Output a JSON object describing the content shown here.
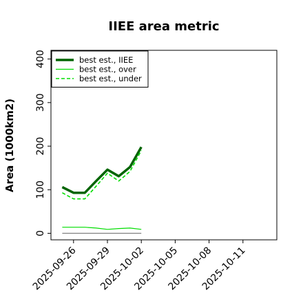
{
  "chart_data": {
    "type": "line",
    "title": "IIEE area metric",
    "xlabel": "",
    "ylabel": "Area (1000km2)",
    "xlim": [
      "2025-09-24",
      "2025-10-14"
    ],
    "ylim": [
      -15,
      420
    ],
    "x_ticks": [
      "2025-09-26",
      "2025-09-29",
      "2025-10-02",
      "2025-10-05",
      "2025-10-08",
      "2025-10-11"
    ],
    "y_ticks": [
      0,
      100,
      200,
      300,
      400
    ],
    "legend": {
      "placement": "top-left",
      "frame": true
    },
    "series": [
      {
        "name": "best est., IIEE",
        "color": "#006400",
        "style": "solid",
        "weight": "thick",
        "x": [
          "2025-09-25",
          "2025-09-26",
          "2025-09-27",
          "2025-09-28",
          "2025-09-29",
          "2025-09-30",
          "2025-10-01",
          "2025-10-02"
        ],
        "values": [
          106,
          93,
          93,
          120,
          146,
          131,
          152,
          198
        ]
      },
      {
        "name": "best est., over",
        "color": "#00dd00",
        "style": "solid",
        "weight": "thin",
        "x": [
          "2025-09-25",
          "2025-09-26",
          "2025-09-27",
          "2025-09-28",
          "2025-09-29",
          "2025-09-30",
          "2025-10-01",
          "2025-10-02"
        ],
        "values": [
          14,
          14,
          14,
          12,
          9,
          11,
          12,
          9
        ]
      },
      {
        "name": "best est., under",
        "color": "#00dd00",
        "style": "dashed",
        "weight": "medium",
        "x": [
          "2025-09-25",
          "2025-09-26",
          "2025-09-27",
          "2025-09-28",
          "2025-09-29",
          "2025-09-30",
          "2025-10-01",
          "2025-10-02"
        ],
        "values": [
          93,
          79,
          79,
          108,
          138,
          120,
          142,
          190
        ]
      },
      {
        "name": "",
        "color": "#808080",
        "style": "solid",
        "weight": "thin",
        "x": [
          "2025-09-25",
          "2025-10-02"
        ],
        "values": [
          0,
          0
        ]
      }
    ]
  }
}
